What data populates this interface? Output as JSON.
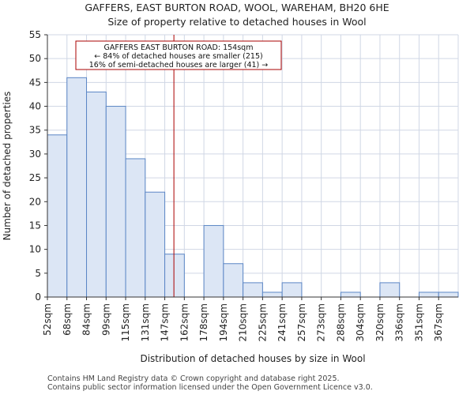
{
  "chart_data": {
    "type": "bar",
    "title": "GAFFERS, EAST BURTON ROAD, WOOL, WAREHAM, BH20 6HE",
    "subtitle": "Size of property relative to detached houses in Wool",
    "xlabel": "Distribution of detached houses by size in Wool",
    "ylabel": "Number of detached properties",
    "ylim": [
      0,
      55
    ],
    "yticks": [
      0,
      5,
      10,
      15,
      20,
      25,
      30,
      35,
      40,
      45,
      50,
      55
    ],
    "categories": [
      "52sqm",
      "68sqm",
      "84sqm",
      "99sqm",
      "115sqm",
      "131sqm",
      "147sqm",
      "162sqm",
      "178sqm",
      "194sqm",
      "210sqm",
      "225sqm",
      "241sqm",
      "257sqm",
      "273sqm",
      "288sqm",
      "304sqm",
      "320sqm",
      "336sqm",
      "351sqm",
      "367sqm"
    ],
    "values": [
      34,
      46,
      43,
      40,
      29,
      22,
      9,
      0,
      15,
      7,
      3,
      1,
      3,
      0,
      0,
      1,
      0,
      3,
      0,
      1,
      1
    ],
    "grid": true,
    "marker": {
      "x": 154,
      "x_unit": "sqm",
      "color": "#aa0000"
    },
    "annotation": {
      "lines": [
        "GAFFERS EAST BURTON ROAD: 154sqm",
        "← 84% of detached houses are smaller (215)",
        "16% of semi-detached houses are larger (41) →"
      ]
    },
    "colors": {
      "bar_fill": "#dce6f5",
      "bar_edge": "#5b86c5",
      "grid": "#d0d7e5",
      "marker": "#aa0000"
    }
  },
  "footer": {
    "line1": "Contains HM Land Registry data © Crown copyright and database right 2025.",
    "line2": "Contains public sector information licensed under the Open Government Licence v3.0."
  }
}
